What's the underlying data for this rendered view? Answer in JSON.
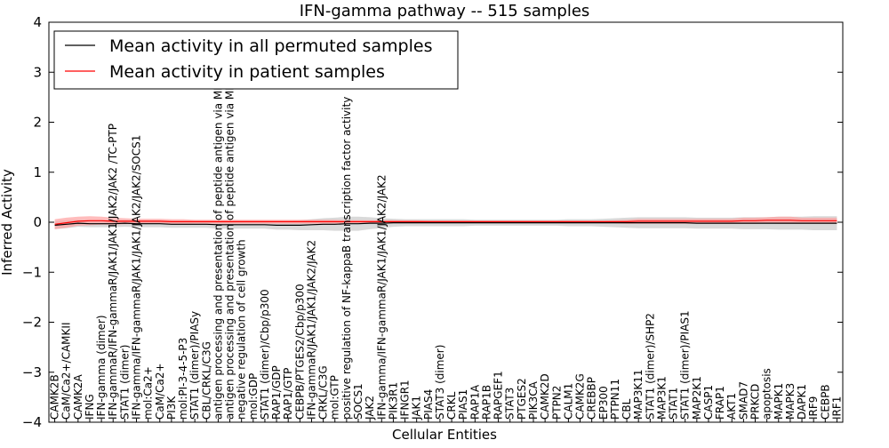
{
  "chart_data": {
    "type": "line",
    "title": "IFN-gamma pathway -- 515 samples",
    "xlabel": "Cellular Entities",
    "ylabel": "Inferred Activity",
    "ylim": [
      -4,
      4
    ],
    "yticks": [
      -4,
      -3,
      -2,
      -1,
      0,
      1,
      2,
      3,
      4
    ],
    "ytick_labels": [
      "−4",
      "−3",
      "−2",
      "−1",
      "0",
      "1",
      "2",
      "3",
      "4"
    ],
    "grid": false,
    "legend_position": "top-left",
    "categories": [
      "CAMK2B",
      "CaM/Ca2+/CAMKII",
      "CAMK2A",
      "IFNG",
      "IFN-gamma (dimer)",
      "IFN-gammaR/IFN-gammaR/JAK1/JAK1/JAK2/JAK2 /TC-PTP",
      "STAT1 (dimer)",
      "IFN-gamma/IFN-gammaR/JAK1/JAK1/JAK2/JAK2/SOCS1",
      "mol:Ca2+",
      "CaM/Ca2+",
      "PI3K",
      "mol:PI-3-4-5-P3",
      "STAT1 (dimer)/PIASy",
      "CBL/CRKL/C3G",
      "antigen processing and presentation of peptide antigen via MHC class I",
      "antigen processing and presentation of peptide antigen via MHC class II",
      "negative regulation of cell growth",
      "mol:GDP",
      "STAT1 (dimer)/Cbp/p300",
      "RAP1/GDP",
      "RAP1/GTP",
      "CEBPB/PTGES2/Cbp/p300",
      "IFN-gammaR/JAK1/JAK1/JAK2/JAK2",
      "CRKL/C3G",
      "mol:GTP",
      "positive regulation of NF-kappaB transcription factor activity",
      "SOCS1",
      "JAK2",
      "IFN-gamma/IFN-gammaR/JAK1/JAK1/JAK2/JAK2",
      "PIK3R1",
      "IFNGR1",
      "JAK1",
      "PIAS4",
      "STAT3 (dimer)",
      "CRKL",
      "PIAS1",
      "RAP1A",
      "RAP1B",
      "RAPGEF1",
      "STAT3",
      "PTGES2",
      "PIK3CA",
      "CAMK2D",
      "PTPN2",
      "CALM1",
      "CAMK2G",
      "CREBBP",
      "EP300",
      "PTPN11",
      "CBL",
      "MAP3K11",
      "STAT1 (dimer)/SHP2",
      "MAP3K1",
      "STAT1",
      "STAT1 (dimer)/PIAS1",
      "MAP2K1",
      "CASP1",
      "FRAP1",
      "AKT1",
      "SMAD7",
      "PRKCD",
      "apoptosis",
      "MAPK1",
      "MAPK3",
      "DAPK1",
      "IRF9",
      "CEBPB",
      "IRF1"
    ],
    "series": [
      {
        "name": "Mean activity in all permuted samples",
        "color": "#000000",
        "band_color": "#cccccc",
        "values": [
          -0.06,
          -0.04,
          -0.02,
          -0.03,
          -0.03,
          -0.03,
          -0.02,
          -0.03,
          -0.03,
          -0.03,
          -0.04,
          -0.04,
          -0.04,
          -0.04,
          -0.05,
          -0.05,
          -0.05,
          -0.05,
          -0.05,
          -0.06,
          -0.06,
          -0.06,
          -0.05,
          -0.04,
          -0.04,
          -0.03,
          -0.03,
          -0.02,
          -0.02,
          -0.01,
          -0.01,
          -0.01,
          -0.01,
          -0.01,
          -0.01,
          -0.01,
          -0.01,
          -0.01,
          -0.01,
          -0.01,
          -0.01,
          -0.01,
          -0.01,
          -0.01,
          -0.01,
          -0.01,
          -0.01,
          -0.01,
          -0.01,
          -0.01,
          -0.01,
          -0.01,
          -0.01,
          -0.01,
          -0.01,
          -0.02,
          -0.02,
          -0.02,
          -0.02,
          -0.02,
          -0.02,
          -0.02,
          -0.02,
          -0.02,
          -0.02,
          -0.02,
          -0.02,
          -0.02
        ],
        "band_width": [
          0.08,
          0.08,
          0.07,
          0.07,
          0.07,
          0.07,
          0.07,
          0.07,
          0.07,
          0.07,
          0.07,
          0.07,
          0.07,
          0.07,
          0.08,
          0.08,
          0.08,
          0.08,
          0.08,
          0.09,
          0.09,
          0.1,
          0.11,
          0.12,
          0.13,
          0.14,
          0.14,
          0.12,
          0.1,
          0.08,
          0.07,
          0.07,
          0.07,
          0.07,
          0.07,
          0.07,
          0.06,
          0.06,
          0.06,
          0.06,
          0.06,
          0.06,
          0.06,
          0.06,
          0.07,
          0.07,
          0.07,
          0.08,
          0.09,
          0.1,
          0.11,
          0.11,
          0.11,
          0.11,
          0.11,
          0.11,
          0.11,
          0.11,
          0.11,
          0.12,
          0.12,
          0.12,
          0.13,
          0.13,
          0.13,
          0.14,
          0.14,
          0.14
        ]
      },
      {
        "name": "Mean activity in patient samples",
        "color": "#ff0000",
        "band_color": "#ff9f9f",
        "values": [
          -0.04,
          -0.01,
          0.02,
          0.03,
          0.03,
          0.02,
          0.02,
          0.02,
          0.02,
          0.02,
          0.01,
          0.01,
          0.01,
          0.01,
          0.01,
          0.01,
          0.01,
          0.01,
          0.01,
          0.01,
          0.01,
          0.01,
          0.01,
          0.01,
          0.01,
          0.01,
          0.01,
          0.01,
          0.01,
          0.01,
          0.01,
          0.01,
          0.01,
          0.01,
          0.01,
          0.01,
          0.01,
          0.01,
          0.01,
          0.01,
          0.01,
          0.01,
          0.01,
          0.01,
          0.01,
          0.01,
          0.01,
          0.01,
          0.01,
          0.01,
          0.02,
          0.02,
          0.02,
          0.02,
          0.02,
          0.02,
          0.02,
          0.02,
          0.02,
          0.03,
          0.03,
          0.04,
          0.04,
          0.04,
          0.03,
          0.03,
          0.03,
          0.03
        ],
        "band_width": [
          0.1,
          0.1,
          0.09,
          0.09,
          0.08,
          0.07,
          0.06,
          0.05,
          0.05,
          0.05,
          0.05,
          0.05,
          0.04,
          0.04,
          0.04,
          0.04,
          0.04,
          0.04,
          0.04,
          0.04,
          0.04,
          0.04,
          0.04,
          0.04,
          0.04,
          0.03,
          0.03,
          0.03,
          0.03,
          0.03,
          0.03,
          0.03,
          0.02,
          0.02,
          0.02,
          0.02,
          0.02,
          0.02,
          0.02,
          0.02,
          0.02,
          0.02,
          0.02,
          0.02,
          0.02,
          0.02,
          0.02,
          0.02,
          0.03,
          0.04,
          0.05,
          0.05,
          0.05,
          0.05,
          0.05,
          0.05,
          0.05,
          0.05,
          0.05,
          0.06,
          0.06,
          0.06,
          0.07,
          0.07,
          0.06,
          0.06,
          0.06,
          0.06
        ]
      }
    ]
  }
}
